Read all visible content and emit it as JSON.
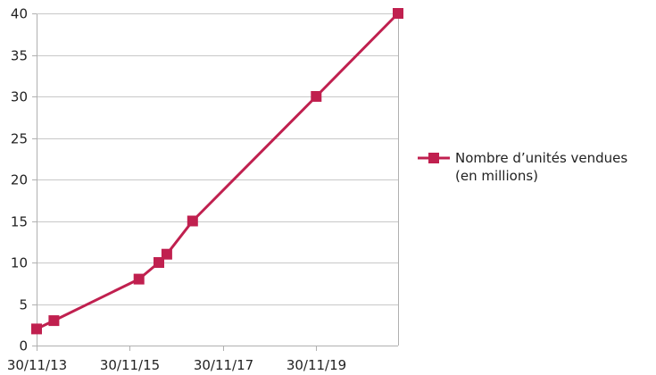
{
  "chart_data": {
    "type": "line",
    "x_type": "date",
    "xlim": [
      "2013-11-30",
      "2021-09-01"
    ],
    "x_ticks": [
      "2013-11-30",
      "2015-11-30",
      "2017-11-30",
      "2019-11-30"
    ],
    "x_tick_labels": [
      "30/11/13",
      "30/11/15",
      "30/11/17",
      "30/11/19"
    ],
    "ylim": [
      0,
      40
    ],
    "y_ticks": [
      0,
      5,
      10,
      15,
      20,
      25,
      30,
      35,
      40
    ],
    "grid": {
      "horizontal": true,
      "vertical": false
    },
    "legend_position": "right",
    "series": [
      {
        "name": "Nombre d’unités vendues (en millions)",
        "color": "#c0204f",
        "marker": "square",
        "points": [
          {
            "x": "2013-11-30",
            "y": 2
          },
          {
            "x": "2014-04-15",
            "y": 3
          },
          {
            "x": "2016-02-10",
            "y": 8
          },
          {
            "x": "2016-07-15",
            "y": 10
          },
          {
            "x": "2016-09-15",
            "y": 11
          },
          {
            "x": "2017-04-05",
            "y": 15
          },
          {
            "x": "2019-11-30",
            "y": 30
          },
          {
            "x": "2021-09-01",
            "y": 40
          }
        ]
      }
    ]
  },
  "legend": {
    "label": "Nombre d’unités vendues\n(en millions)"
  }
}
